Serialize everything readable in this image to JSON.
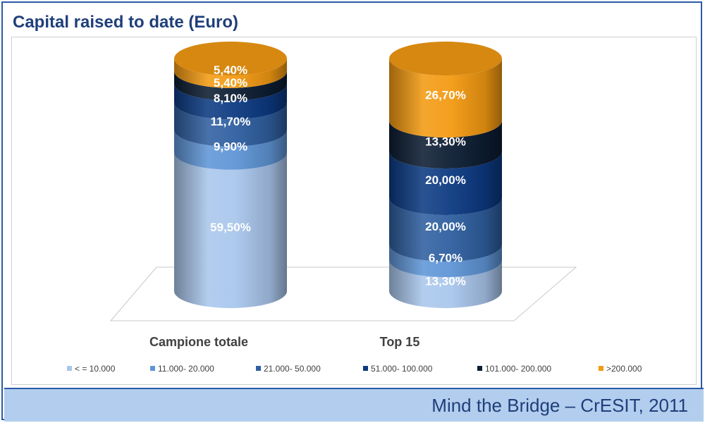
{
  "title": "Capital raised to date (Euro)",
  "footer": "Mind the Bridge – CrESIT, 2011",
  "chart_data": {
    "type": "bar",
    "stacked": true,
    "style": "3d-cylinder",
    "title": "Capital raised to date (Euro)",
    "categories": [
      "Campione totale",
      "Top 15"
    ],
    "series": [
      {
        "name": "< = 10.000",
        "color": "#a9c6ec",
        "values": [
          59.5,
          13.3
        ],
        "labels": [
          "59,50%",
          "13,30%"
        ]
      },
      {
        "name": "11.000- 20.000",
        "color": "#5f95d6",
        "values": [
          9.9,
          6.7
        ],
        "labels": [
          "9,90%",
          "6,70%"
        ]
      },
      {
        "name": "21.000- 50.000",
        "color": "#2f5fa0",
        "values": [
          11.7,
          20.0
        ],
        "labels": [
          "11,70%",
          "20,00%"
        ]
      },
      {
        "name": "51.000- 100.000",
        "color": "#0c3a82",
        "values": [
          8.1,
          20.0
        ],
        "labels": [
          "8,10%",
          "20,00%"
        ]
      },
      {
        "name": "101.000- 200.000",
        "color": "#0d1d33",
        "values": [
          5.4,
          13.3
        ],
        "labels": [
          "5,40%",
          "13,30%"
        ]
      },
      {
        "name": ">200.000",
        "color": "#f39a12",
        "values": [
          5.4,
          26.7
        ],
        "labels": [
          "5,40%",
          "26,70%"
        ]
      }
    ],
    "legend_position": "bottom",
    "grid": false
  }
}
